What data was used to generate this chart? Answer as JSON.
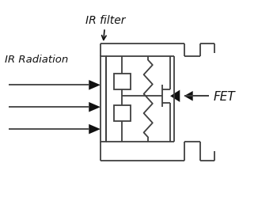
{
  "bg_color": "#ffffff",
  "line_color": "#404040",
  "arrow_color": "#111111",
  "text_color": "#111111",
  "label_ir_filter": "IR filter",
  "label_ir_radiation": "IR Radiation",
  "label_fet": "FET",
  "fig_width": 3.5,
  "fig_height": 2.55,
  "dpi": 100
}
